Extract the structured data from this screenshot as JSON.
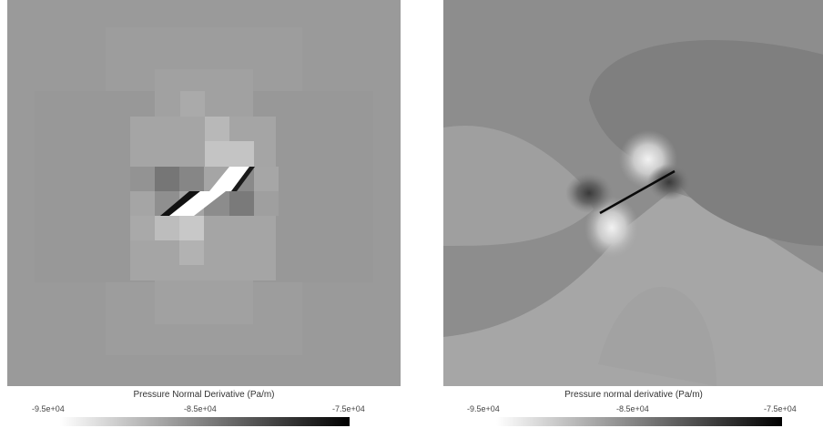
{
  "panels": [
    {
      "colorbar_title": "Pressure Normal Derivative (Pa/m)",
      "ticks": [
        "-9.5e+04",
        "-8.5e+04",
        "-7.5e+04"
      ]
    },
    {
      "colorbar_title": "Pressure normal derivative (Pa/m)",
      "ticks": [
        "-9.5e+04",
        "-8.5e+04",
        "-7.5e+04"
      ]
    }
  ]
}
